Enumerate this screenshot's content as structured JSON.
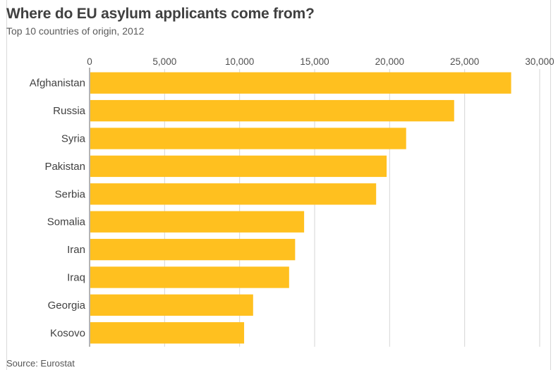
{
  "title": "Where do EU asylum applicants come from?",
  "subtitle": "Top 10 countries of origin, 2012",
  "source": "Source: Eurostat",
  "colors": {
    "bar": "#FFC01F",
    "grid": "#d6d6d6",
    "axis": "#9a9a9a"
  },
  "chart_data": {
    "type": "bar",
    "orientation": "horizontal",
    "title": "Where do EU asylum applicants come from?",
    "subtitle": "Top 10 countries of origin, 2012",
    "categories": [
      "Afghanistan",
      "Russia",
      "Syria",
      "Pakistan",
      "Serbia",
      "Somalia",
      "Iran",
      "Iraq",
      "Georgia",
      "Kosovo"
    ],
    "values": [
      28100,
      24300,
      21100,
      19800,
      19100,
      14300,
      13700,
      13300,
      10900,
      10300
    ],
    "xlim": [
      0,
      30000
    ],
    "xticks": [
      0,
      5000,
      10000,
      15000,
      20000,
      25000,
      30000
    ],
    "xtick_labels": [
      "0",
      "5,000",
      "10,000",
      "15,000",
      "20,000",
      "25,000",
      "30,000"
    ],
    "axis_position": "top",
    "grid": true,
    "legend": "none"
  }
}
